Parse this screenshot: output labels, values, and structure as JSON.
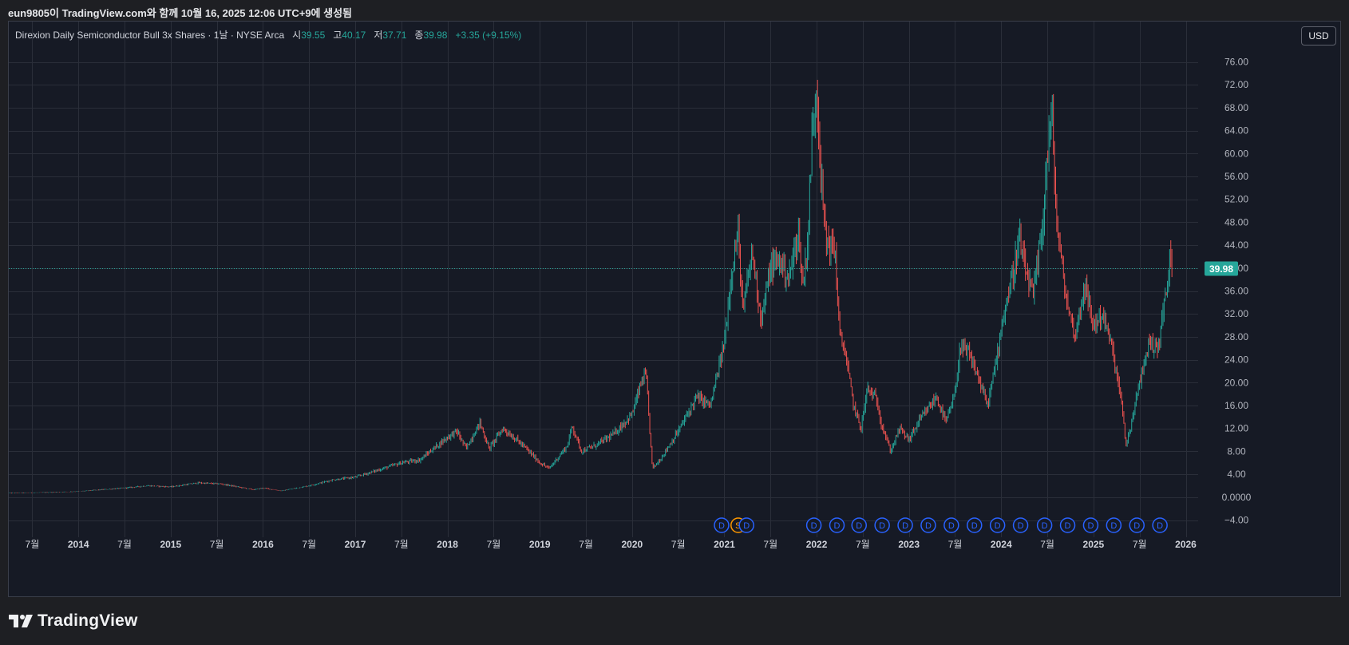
{
  "caption": "eun9805이 TradingView.com와 함께 10월 16, 2025 12:06 UTC+9에 생성됨",
  "legend": {
    "symbol_desc": "Direxion Daily Semiconductor Bull 3x Shares · 1날 · NYSE Arca",
    "open_label": "시",
    "open": "39.55",
    "high_label": "고",
    "high": "40.17",
    "low_label": "저",
    "low": "37.71",
    "close_label": "종",
    "close": "39.98",
    "change": "+3.35 (+9.15%)"
  },
  "currency_button": "USD",
  "price_tag": "39.98",
  "brand": "TradingView",
  "colors": {
    "up": "#26a69a",
    "down": "#ef5350",
    "dividend": "#2962ff",
    "split": "#ff9800",
    "background": "#161a25",
    "grid": "#2a2e39"
  },
  "chart_data": {
    "type": "candlestick",
    "ylim": [
      -4,
      76
    ],
    "y_ticks": [
      "76.00",
      "72.00",
      "68.00",
      "64.00",
      "60.00",
      "56.00",
      "52.00",
      "48.00",
      "44.00",
      "40.00",
      "36.00",
      "32.00",
      "28.00",
      "24.00",
      "20.00",
      "16.00",
      "12.00",
      "8.00",
      "4.00",
      "0.0000",
      "−4.00"
    ],
    "x_ticks": [
      {
        "label": "7월",
        "date": 2013.5
      },
      {
        "label": "2014",
        "date": 2014.0
      },
      {
        "label": "7월",
        "date": 2014.5
      },
      {
        "label": "2015",
        "date": 2015.0
      },
      {
        "label": "7월",
        "date": 2015.5
      },
      {
        "label": "2016",
        "date": 2016.0
      },
      {
        "label": "7월",
        "date": 2016.5
      },
      {
        "label": "2017",
        "date": 2017.0
      },
      {
        "label": "7월",
        "date": 2017.5
      },
      {
        "label": "2018",
        "date": 2018.0
      },
      {
        "label": "7월",
        "date": 2018.5
      },
      {
        "label": "2019",
        "date": 2019.0
      },
      {
        "label": "7월",
        "date": 2019.5
      },
      {
        "label": "2020",
        "date": 2020.0
      },
      {
        "label": "7월",
        "date": 2020.5
      },
      {
        "label": "2021",
        "date": 2021.0
      },
      {
        "label": "7월",
        "date": 2021.5
      },
      {
        "label": "2022",
        "date": 2022.0
      },
      {
        "label": "7월",
        "date": 2022.5
      },
      {
        "label": "2023",
        "date": 2023.0
      },
      {
        "label": "7월",
        "date": 2023.5
      },
      {
        "label": "2024",
        "date": 2024.0
      },
      {
        "label": "7월",
        "date": 2024.5
      },
      {
        "label": "2025",
        "date": 2025.0
      },
      {
        "label": "7월",
        "date": 2025.5
      },
      {
        "label": "2026",
        "date": 2026.0
      }
    ],
    "price_path": [
      [
        2013.25,
        0.7
      ],
      [
        2013.6,
        0.8
      ],
      [
        2014.0,
        1.0
      ],
      [
        2014.5,
        1.6
      ],
      [
        2014.75,
        2.0
      ],
      [
        2015.0,
        1.8
      ],
      [
        2015.3,
        2.5
      ],
      [
        2015.55,
        2.3
      ],
      [
        2015.9,
        1.3
      ],
      [
        2016.0,
        1.6
      ],
      [
        2016.2,
        1.1
      ],
      [
        2016.5,
        2.0
      ],
      [
        2016.75,
        3.0
      ],
      [
        2017.0,
        3.5
      ],
      [
        2017.3,
        5.0
      ],
      [
        2017.5,
        6.0
      ],
      [
        2017.7,
        6.5
      ],
      [
        2018.0,
        10.5
      ],
      [
        2018.1,
        11.5
      ],
      [
        2018.2,
        8.5
      ],
      [
        2018.35,
        13.0
      ],
      [
        2018.45,
        8.5
      ],
      [
        2018.6,
        12.0
      ],
      [
        2018.75,
        10.0
      ],
      [
        2018.85,
        8.5
      ],
      [
        2019.0,
        6.0
      ],
      [
        2019.1,
        5.0
      ],
      [
        2019.3,
        9.0
      ],
      [
        2019.35,
        12.5
      ],
      [
        2019.45,
        8.0
      ],
      [
        2019.6,
        9.0
      ],
      [
        2019.8,
        11.0
      ],
      [
        2020.0,
        14.5
      ],
      [
        2020.1,
        20.0
      ],
      [
        2020.15,
        21.5
      ],
      [
        2020.22,
        5.0
      ],
      [
        2020.3,
        6.5
      ],
      [
        2020.5,
        11.5
      ],
      [
        2020.7,
        17.5
      ],
      [
        2020.85,
        16.0
      ],
      [
        2021.0,
        27.0
      ],
      [
        2021.08,
        40.0
      ],
      [
        2021.15,
        46.0
      ],
      [
        2021.2,
        32.0
      ],
      [
        2021.3,
        43.0
      ],
      [
        2021.4,
        31.0
      ],
      [
        2021.5,
        40.0
      ],
      [
        2021.6,
        41.5
      ],
      [
        2021.7,
        38.0
      ],
      [
        2021.8,
        46.5
      ],
      [
        2021.85,
        37.0
      ],
      [
        2021.9,
        44.0
      ],
      [
        2021.95,
        63.0
      ],
      [
        2022.0,
        72.0
      ],
      [
        2022.03,
        63.0
      ],
      [
        2022.05,
        55.0
      ],
      [
        2022.1,
        45.0
      ],
      [
        2022.2,
        43.0
      ],
      [
        2022.25,
        28.0
      ],
      [
        2022.3,
        26.0
      ],
      [
        2022.4,
        16.0
      ],
      [
        2022.48,
        12.0
      ],
      [
        2022.55,
        19.0
      ],
      [
        2022.65,
        17.0
      ],
      [
        2022.7,
        13.0
      ],
      [
        2022.8,
        8.0
      ],
      [
        2022.9,
        12.0
      ],
      [
        2023.0,
        10.0
      ],
      [
        2023.1,
        13.0
      ],
      [
        2023.3,
        17.5
      ],
      [
        2023.4,
        13.0
      ],
      [
        2023.5,
        18.0
      ],
      [
        2023.55,
        26.0
      ],
      [
        2023.65,
        25.0
      ],
      [
        2023.75,
        21.0
      ],
      [
        2023.85,
        16.0
      ],
      [
        2023.95,
        24.0
      ],
      [
        2024.0,
        30.0
      ],
      [
        2024.1,
        37.0
      ],
      [
        2024.2,
        45.0
      ],
      [
        2024.25,
        40.0
      ],
      [
        2024.35,
        35.0
      ],
      [
        2024.45,
        48.0
      ],
      [
        2024.5,
        60.0
      ],
      [
        2024.55,
        67.0
      ],
      [
        2024.6,
        48.0
      ],
      [
        2024.7,
        35.0
      ],
      [
        2024.8,
        28.0
      ],
      [
        2024.9,
        37.0
      ],
      [
        2025.0,
        30.0
      ],
      [
        2025.1,
        32.0
      ],
      [
        2025.2,
        26.0
      ],
      [
        2025.3,
        17.0
      ],
      [
        2025.35,
        9.0
      ],
      [
        2025.4,
        12.0
      ],
      [
        2025.5,
        20.0
      ],
      [
        2025.6,
        27.0
      ],
      [
        2025.7,
        26.0
      ],
      [
        2025.75,
        32.0
      ],
      [
        2025.8,
        37.0
      ],
      [
        2025.83,
        42.0
      ],
      [
        2025.85,
        39.98
      ]
    ],
    "events": [
      {
        "type": "D",
        "date": 2020.97
      },
      {
        "type": "S",
        "date": 2021.15
      },
      {
        "type": "D",
        "date": 2021.24
      },
      {
        "type": "D",
        "date": 2021.97
      },
      {
        "type": "D",
        "date": 2022.22
      },
      {
        "type": "D",
        "date": 2022.46
      },
      {
        "type": "D",
        "date": 2022.71
      },
      {
        "type": "D",
        "date": 2022.96
      },
      {
        "type": "D",
        "date": 2023.21
      },
      {
        "type": "D",
        "date": 2023.46
      },
      {
        "type": "D",
        "date": 2023.71
      },
      {
        "type": "D",
        "date": 2023.96
      },
      {
        "type": "D",
        "date": 2024.21
      },
      {
        "type": "D",
        "date": 2024.47
      },
      {
        "type": "D",
        "date": 2024.72
      },
      {
        "type": "D",
        "date": 2024.97
      },
      {
        "type": "D",
        "date": 2025.22
      },
      {
        "type": "D",
        "date": 2025.47
      },
      {
        "type": "D",
        "date": 2025.72
      }
    ],
    "last_price": 39.98
  }
}
